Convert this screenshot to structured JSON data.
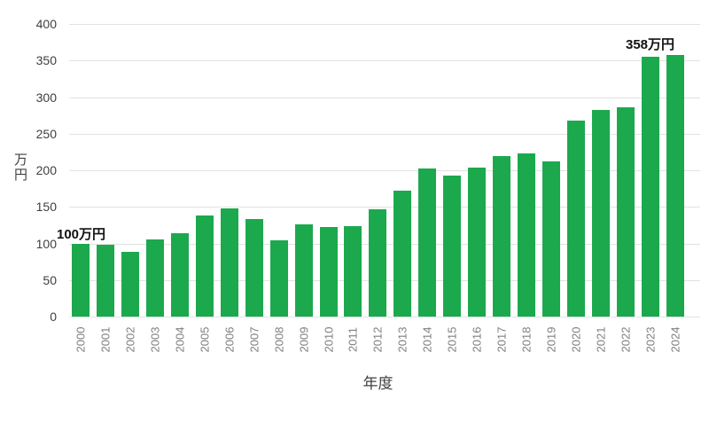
{
  "chart_data": {
    "type": "bar",
    "title": "",
    "xlabel": "年度",
    "ylabel": "万円",
    "categories": [
      "2000",
      "2001",
      "2002",
      "2003",
      "2004",
      "2005",
      "2006",
      "2007",
      "2008",
      "2009",
      "2010",
      "2011",
      "2012",
      "2013",
      "2014",
      "2015",
      "2016",
      "2017",
      "2018",
      "2019",
      "2020",
      "2021",
      "2022",
      "2023",
      "2024"
    ],
    "values": [
      100,
      98,
      89,
      105,
      114,
      138,
      148,
      133,
      104,
      126,
      122,
      124,
      147,
      172,
      202,
      193,
      204,
      219,
      223,
      212,
      268,
      283,
      286,
      355,
      358
    ],
    "ylim": [
      0,
      400
    ],
    "yticks": [
      400,
      350,
      300,
      250,
      200,
      150,
      100,
      50,
      0
    ],
    "grid": "horizontal",
    "legend": "none",
    "bar_color": "#1CA94E",
    "gridline_color": "#e2e2e2",
    "xtick_color": "#7f7f7f",
    "ytick_color": "#404040",
    "annotations": [
      {
        "text": "100万円",
        "target_category": "2000"
      },
      {
        "text": "358万円",
        "target_category": "2024"
      }
    ]
  }
}
